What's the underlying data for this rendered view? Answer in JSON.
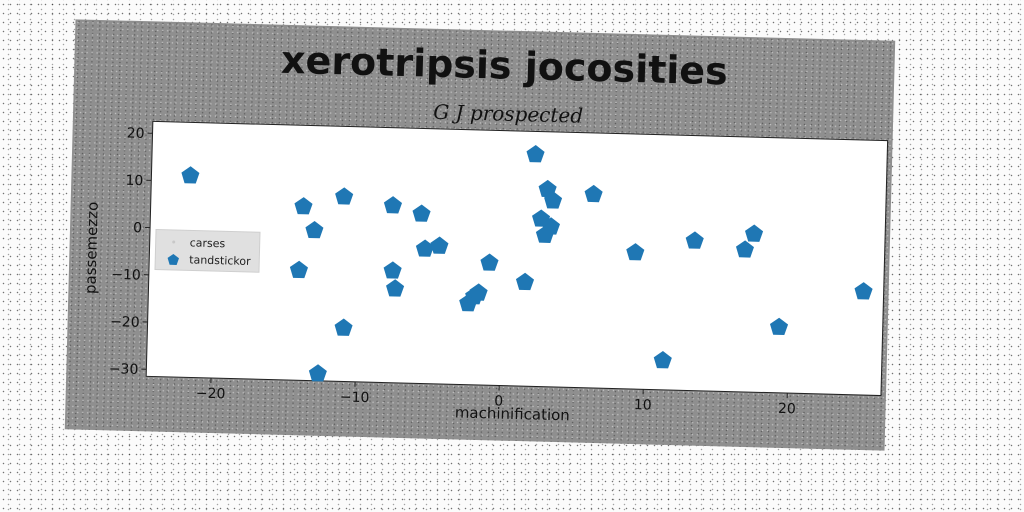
{
  "chart_data": {
    "type": "scatter",
    "title": "xerotripsis jocosities",
    "subtitle": "G J prospected",
    "xlabel": "machinification",
    "ylabel": "passemezzo",
    "xlim": [
      -24.5,
      26.5
    ],
    "ylim": [
      -31.5,
      22.5
    ],
    "xticks": [
      -20,
      -10,
      0,
      10,
      20
    ],
    "yticks": [
      -30,
      -20,
      -10,
      0,
      10,
      20
    ],
    "grid": false,
    "legend_position": "center-left",
    "series": [
      {
        "name": "carses",
        "marker": "point",
        "color": "#d8d8d8",
        "points": []
      },
      {
        "name": "tandstickor",
        "marker": "pentagon",
        "color": "#1f77b4",
        "points": [
          [
            -21.8,
            11.2
          ],
          [
            -13.9,
            5.3
          ],
          [
            -13.1,
            0.3
          ],
          [
            -14.1,
            -8.2
          ],
          [
            -11.1,
            7.6
          ],
          [
            -10.9,
            -20.2
          ],
          [
            -12.6,
            -30.0
          ],
          [
            -7.7,
            6.0
          ],
          [
            -5.7,
            4.4
          ],
          [
            -7.6,
            -7.8
          ],
          [
            -7.4,
            -11.6
          ],
          [
            -5.4,
            -3.0
          ],
          [
            -4.4,
            -2.3
          ],
          [
            -2.3,
            -14.3
          ],
          [
            -1.9,
            -12.8
          ],
          [
            -1.6,
            -12.0
          ],
          [
            -0.9,
            -5.6
          ],
          [
            1.6,
            -9.5
          ],
          [
            2.1,
            17.6
          ],
          [
            2.6,
            4.0
          ],
          [
            3.0,
            10.3
          ],
          [
            3.4,
            7.9
          ],
          [
            3.3,
            2.4
          ],
          [
            2.9,
            0.6
          ],
          [
            6.2,
            9.5
          ],
          [
            9.2,
            -2.6
          ],
          [
            11.3,
            -25.3
          ],
          [
            13.3,
            0.2
          ],
          [
            16.8,
            -1.4
          ],
          [
            17.4,
            2.0
          ],
          [
            19.3,
            -17.6
          ],
          [
            25.1,
            -9.6
          ]
        ]
      }
    ]
  }
}
